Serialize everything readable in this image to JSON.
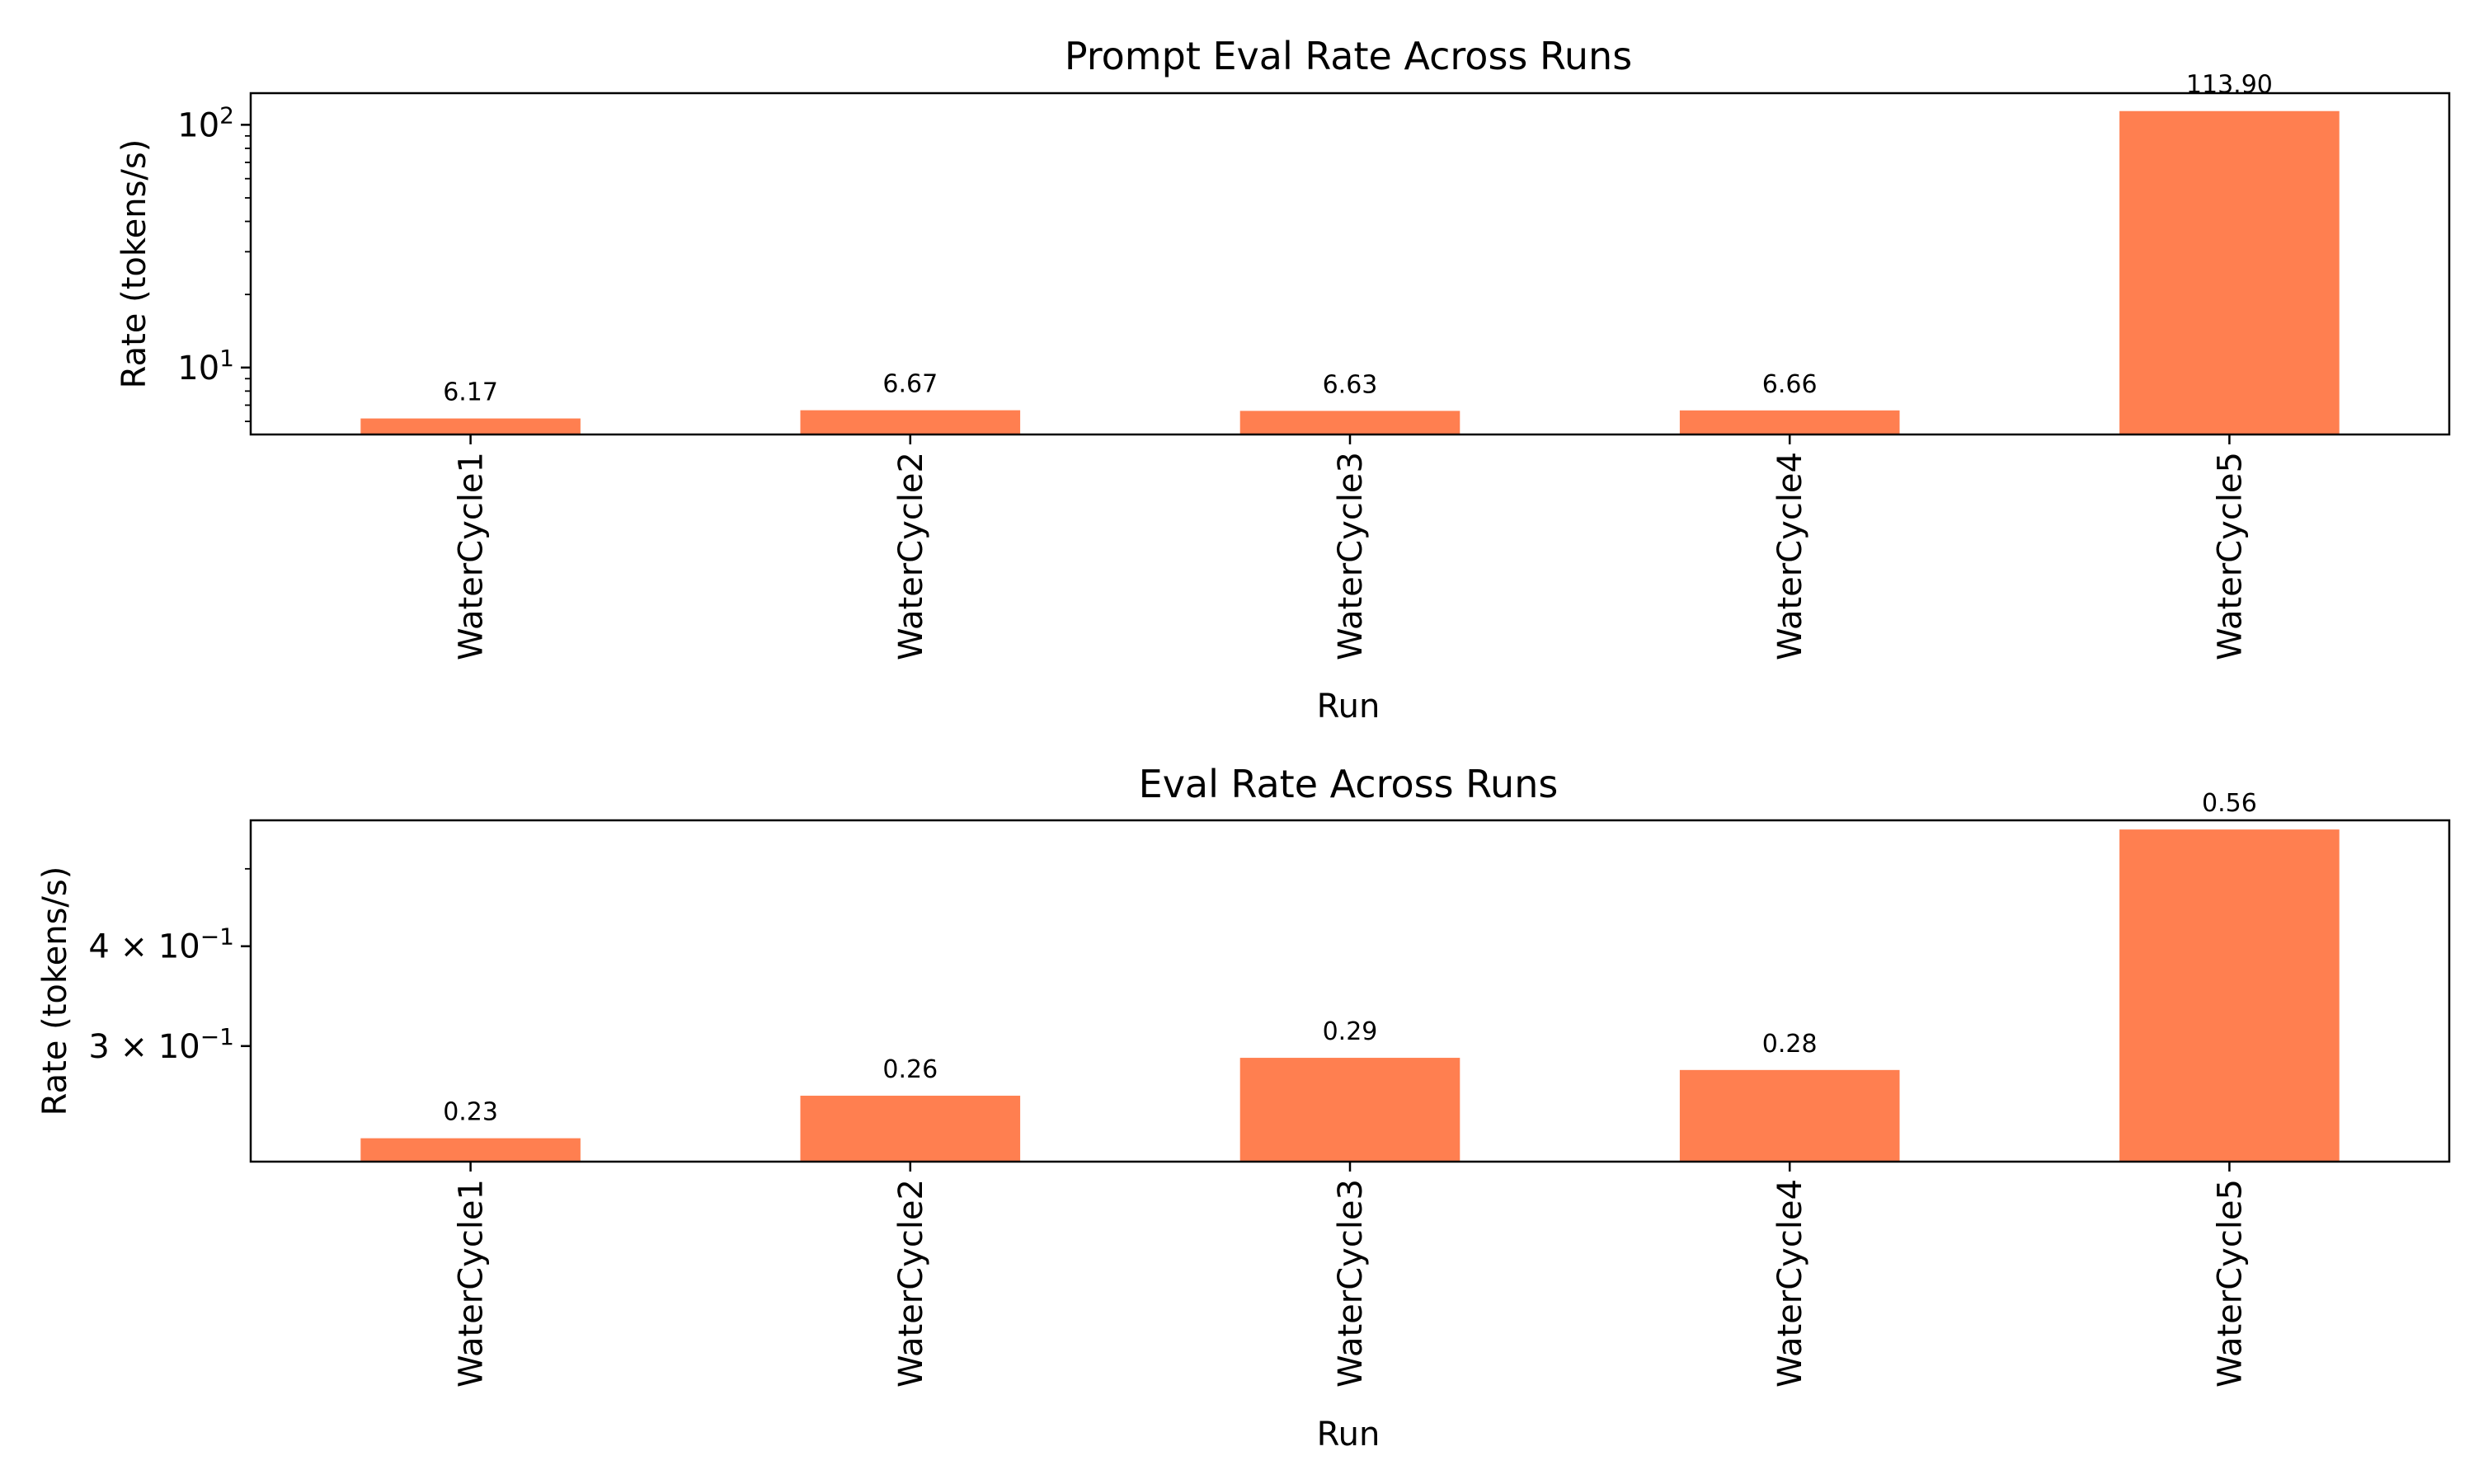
{
  "chart_data": [
    {
      "type": "bar",
      "title": "Prompt Eval Rate Across Runs",
      "xlabel": "Run",
      "ylabel": "Rate (tokens/s)",
      "yscale": "log",
      "ylim": [
        5.3,
        135
      ],
      "categories": [
        "WaterCycle1",
        "WaterCycle2",
        "WaterCycle3",
        "WaterCycle4",
        "WaterCycle5"
      ],
      "values": [
        6.17,
        6.67,
        6.63,
        6.66,
        113.9
      ],
      "data_labels": [
        "6.17",
        "6.67",
        "6.63",
        "6.66",
        "113.90"
      ],
      "y_ticks": [
        {
          "value": 10,
          "base": "10",
          "exp": "1"
        },
        {
          "value": 100,
          "base": "10",
          "exp": "2"
        }
      ],
      "bar_color": "#ff7f50",
      "grid": false,
      "legend": "none"
    },
    {
      "type": "bar",
      "title": "Eval Rate Across Runs",
      "xlabel": "Run",
      "ylabel": "Rate (tokens/s)",
      "yscale": "log",
      "ylim": [
        0.215,
        0.575
      ],
      "categories": [
        "WaterCycle1",
        "WaterCycle2",
        "WaterCycle3",
        "WaterCycle4",
        "WaterCycle5"
      ],
      "values": [
        0.23,
        0.26,
        0.29,
        0.28,
        0.56
      ],
      "data_labels": [
        "0.23",
        "0.26",
        "0.29",
        "0.28",
        "0.56"
      ],
      "y_ticks": [
        {
          "value": 0.3,
          "base": "3 × 10",
          "exp": "−1"
        },
        {
          "value": 0.4,
          "base": "4 × 10",
          "exp": "−1"
        }
      ],
      "bar_color": "#ff7f50",
      "grid": false,
      "legend": "none"
    }
  ]
}
